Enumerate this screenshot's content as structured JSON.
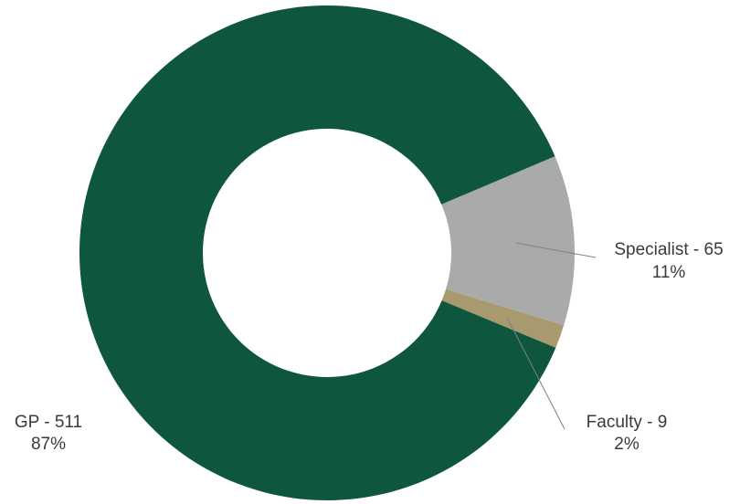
{
  "chart_data": {
    "type": "pie",
    "donut": true,
    "title": "",
    "slices": [
      {
        "name": "Specialist",
        "value": 65,
        "percent_label": "11%",
        "label": "Specialist - 65",
        "color": "#a9abab"
      },
      {
        "name": "Faculty",
        "value": 9,
        "percent_label": "2%",
        "label": "Faculty - 9",
        "color": "#a89a6e"
      },
      {
        "name": "GP",
        "value": 511,
        "percent_label": "87%",
        "label": "GP - 511",
        "color": "#0e573e"
      }
    ],
    "legend": "none",
    "labels": "outside"
  }
}
